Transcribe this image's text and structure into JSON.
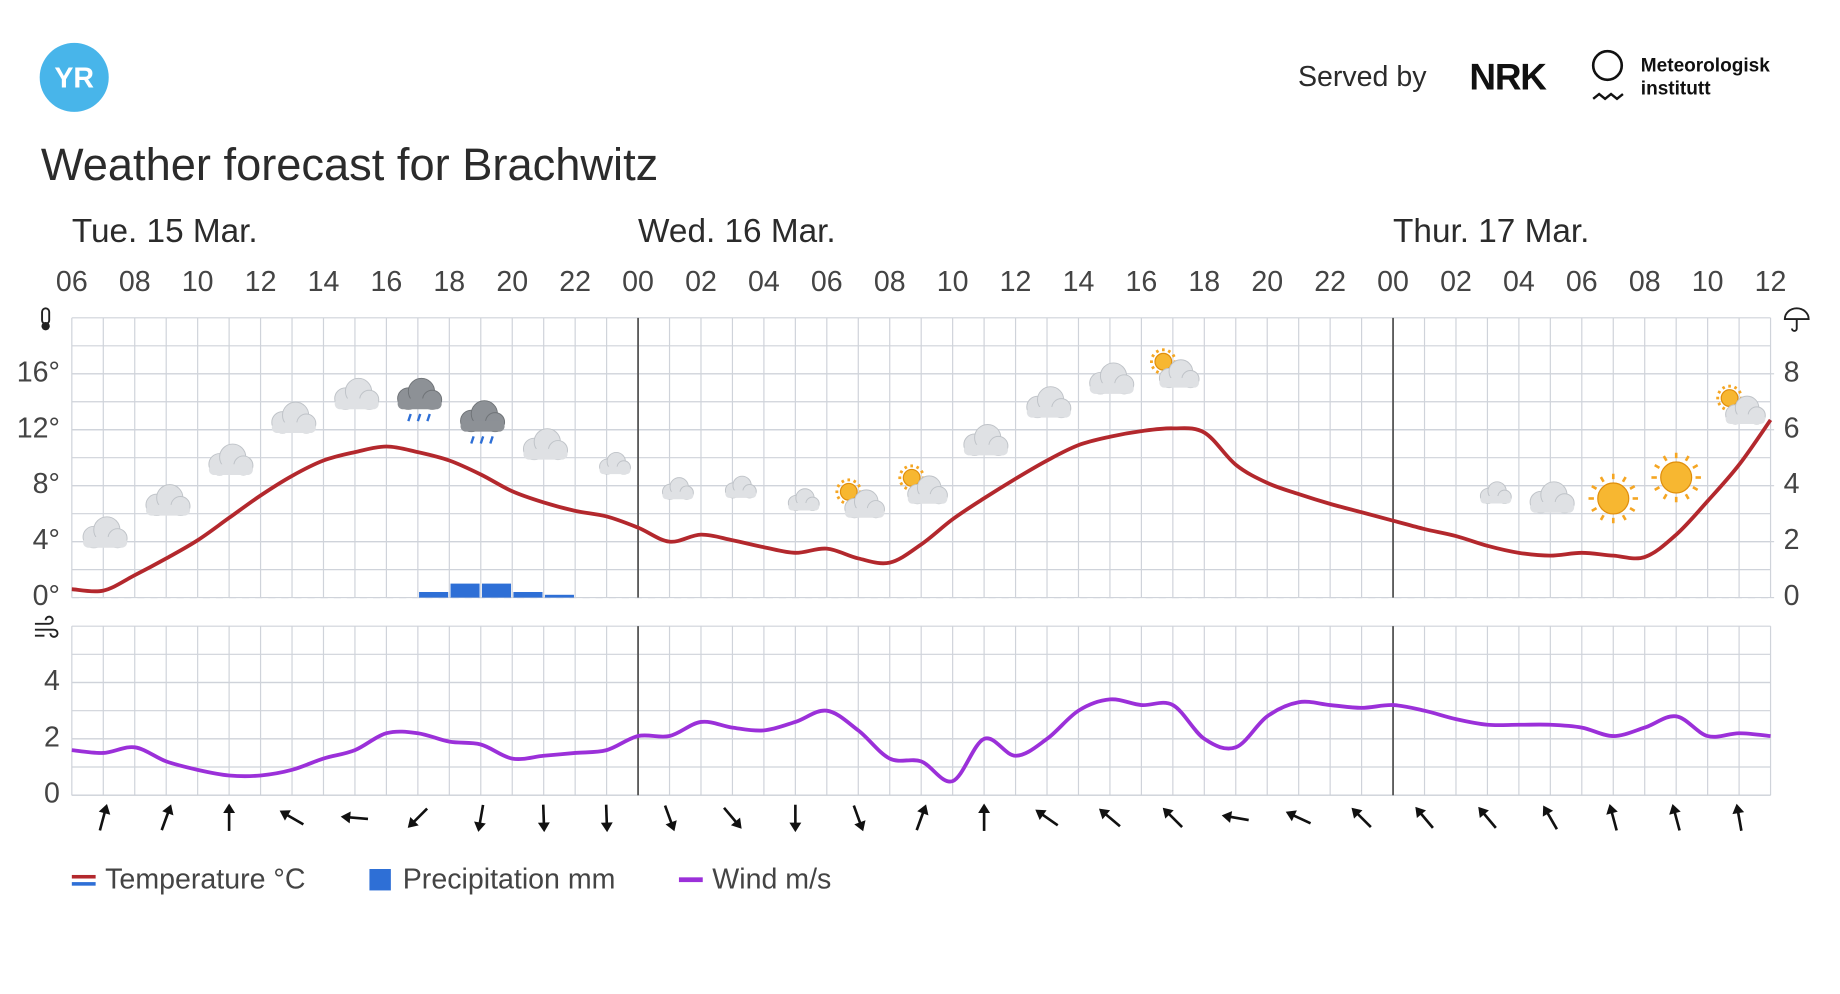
{
  "header": {
    "logo": "YR",
    "served_by": "Served by",
    "partner": "NRK",
    "institute": [
      "Meteorologisk",
      "institutt"
    ]
  },
  "chart_data": [
    {
      "type": "line",
      "title": "Weather forecast for Brachwitz",
      "days": [
        "Tue. 15 Mar.",
        "Wed. 16 Mar.",
        "Thur. 17 Mar."
      ],
      "x_labels": [
        "06",
        "08",
        "10",
        "12",
        "14",
        "16",
        "18",
        "20",
        "22",
        "00",
        "02",
        "04",
        "06",
        "08",
        "10",
        "12",
        "14",
        "16",
        "18",
        "20",
        "22",
        "00",
        "02",
        "04",
        "06",
        "08",
        "10",
        "12"
      ],
      "series": [
        {
          "name": "Temperature °C",
          "color": "#b3282d",
          "values": [
            0.6,
            0.5,
            1.6,
            2.8,
            4.1,
            5.7,
            7.3,
            8.7,
            9.8,
            10.4,
            10.8,
            10.4,
            9.8,
            8.8,
            7.6,
            6.8,
            6.2,
            5.8,
            5.0,
            4.0,
            4.5,
            4.1,
            3.6,
            3.2,
            3.5,
            2.8,
            2.5,
            3.8,
            5.6,
            7.1,
            8.5,
            9.8,
            10.9,
            11.5,
            11.9,
            12.1,
            11.8,
            9.5,
            8.2,
            7.4,
            6.7,
            6.1,
            5.5,
            4.9,
            4.4,
            3.7,
            3.2,
            3.0,
            3.2,
            3.0,
            2.9,
            4.5,
            6.9,
            9.5,
            12.7
          ]
        },
        {
          "name": "Precipitation mm",
          "color": "#2e6fd6",
          "type": "bar",
          "axis": "y2",
          "values": [
            null,
            null,
            null,
            null,
            null,
            null,
            null,
            null,
            null,
            null,
            null,
            0.2,
            0.5,
            0.5,
            0.2,
            0.1,
            null,
            null,
            null,
            null,
            null,
            null,
            null,
            null,
            null,
            null,
            null,
            null,
            null,
            null,
            null,
            null,
            null,
            null,
            null,
            null,
            null,
            null,
            null,
            null,
            null,
            null,
            null,
            null,
            null,
            null,
            null,
            null,
            null,
            null,
            null,
            null,
            null,
            null,
            null
          ]
        }
      ],
      "ylim": [
        0,
        20
      ],
      "yticks": [
        {
          "value": 0,
          "label": "0°"
        },
        {
          "value": 4,
          "label": "4°"
        },
        {
          "value": 8,
          "label": "8°"
        },
        {
          "value": 12,
          "label": "12°"
        },
        {
          "value": 16,
          "label": "16°"
        }
      ],
      "y2lim": [
        0,
        10
      ],
      "y2ticks": [
        0,
        2,
        4,
        6,
        8
      ],
      "grid": true
    },
    {
      "type": "line",
      "series": [
        {
          "name": "Wind m/s",
          "color": "#9b30d9",
          "values": [
            1.6,
            1.5,
            1.7,
            1.2,
            0.9,
            0.7,
            0.7,
            0.9,
            1.3,
            1.6,
            2.2,
            2.2,
            1.9,
            1.8,
            1.3,
            1.4,
            1.5,
            1.6,
            2.1,
            2.1,
            2.6,
            2.4,
            2.3,
            2.6,
            3.0,
            2.3,
            1.3,
            1.2,
            0.5,
            2.0,
            1.4,
            2.0,
            3.0,
            3.4,
            3.2,
            3.2,
            2.0,
            1.7,
            2.8,
            3.3,
            3.2,
            3.1,
            3.2,
            3.0,
            2.7,
            2.5,
            2.5,
            2.5,
            2.4,
            2.1,
            2.4,
            2.8,
            2.1,
            2.2,
            2.1
          ]
        }
      ],
      "wind_direction": [
        15,
        20,
        0,
        -60,
        -85,
        -135,
        190,
        178,
        178,
        160,
        140,
        180,
        160,
        20,
        0,
        -55,
        -50,
        -45,
        -80,
        -65,
        -45,
        -40,
        -40,
        -30,
        -15,
        -15,
        -10
      ],
      "ylim": [
        0,
        6
      ],
      "yticks": [
        0,
        2,
        4
      ],
      "grid": true
    }
  ]
}
